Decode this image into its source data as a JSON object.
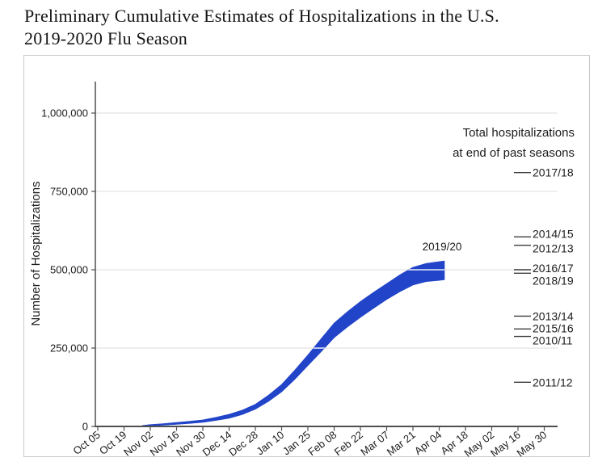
{
  "page": {
    "title_line1": "Preliminary Cumulative Estimates of Hospitalizations in the U.S.",
    "title_line2": "2019-2020 Flu Season"
  },
  "chart_data": {
    "type": "area",
    "title": "",
    "xlabel": "",
    "ylabel": "Number of Hospitalizations",
    "ylim": [
      0,
      1100000
    ],
    "grid": true,
    "yticks": [
      {
        "value": 0,
        "label": "0"
      },
      {
        "value": 250000,
        "label": "250,000"
      },
      {
        "value": 500000,
        "label": "500,000"
      },
      {
        "value": 750000,
        "label": "750,000"
      },
      {
        "value": 1000000,
        "label": "1,000,000"
      }
    ],
    "xticks": [
      "Oct 05",
      "Oct 19",
      "Nov 02",
      "Nov 16",
      "Nov 30",
      "Dec 14",
      "Dec 28",
      "Jan 10",
      "Jan 25",
      "Feb 08",
      "Feb 22",
      "Mar 07",
      "Mar 21",
      "Apr 04",
      "Apr 18",
      "May 02",
      "May 16",
      "May 30"
    ],
    "current_season": {
      "label": "2019/20",
      "band_note": "estimate range [tick_index (2-week spacing from Oct 05), low, high]",
      "band": [
        [
          1.7,
          500,
          3000
        ],
        [
          2.0,
          2000,
          6000
        ],
        [
          2.5,
          4000,
          9000
        ],
        [
          3.0,
          6500,
          12500
        ],
        [
          3.5,
          9500,
          16500
        ],
        [
          4.0,
          13000,
          21000
        ],
        [
          4.5,
          19000,
          29000
        ],
        [
          5.0,
          26000,
          39000
        ],
        [
          5.5,
          38000,
          52000
        ],
        [
          6.0,
          55000,
          71000
        ],
        [
          6.5,
          80000,
          100000
        ],
        [
          7.0,
          110000,
          134000
        ],
        [
          7.5,
          150000,
          180000
        ],
        [
          8.0,
          194000,
          228000
        ],
        [
          8.5,
          238000,
          280000
        ],
        [
          9.0,
          283000,
          330000
        ],
        [
          9.5,
          317000,
          366000
        ],
        [
          10.0,
          348000,
          399000
        ],
        [
          10.5,
          377000,
          428000
        ],
        [
          11.0,
          405000,
          456000
        ],
        [
          11.5,
          430000,
          484000
        ],
        [
          12.0,
          451000,
          508000
        ],
        [
          12.5,
          462000,
          520000
        ],
        [
          13.0,
          466000,
          526000
        ],
        [
          13.2,
          468000,
          528000
        ]
      ]
    },
    "legend_heading": {
      "line1": "Total hospitalizations",
      "line2": "at end of past seasons"
    },
    "past_seasons": [
      {
        "label": "2017/18",
        "value": 810000,
        "label_offset": 0
      },
      {
        "label": "2014/15",
        "value": 605000,
        "label_offset": -4
      },
      {
        "label": "2012/13",
        "value": 578000,
        "label_offset": 4
      },
      {
        "label": "2016/17",
        "value": 500000,
        "label_offset": -2
      },
      {
        "label": "2018/19",
        "value": 489000,
        "label_offset": 9
      },
      {
        "label": "2013/14",
        "value": 352000,
        "label_offset": 0
      },
      {
        "label": "2015/16",
        "value": 311000,
        "label_offset": -1
      },
      {
        "label": "2010/11",
        "value": 287000,
        "label_offset": 5
      },
      {
        "label": "2011/12",
        "value": 141000,
        "label_offset": 0
      }
    ],
    "colors": {
      "band": "#2144c8",
      "axis": "#4f4f4f",
      "grid": "#e4e4e4",
      "text": "#1c1c1c",
      "marker": "#3c3c3c"
    }
  }
}
